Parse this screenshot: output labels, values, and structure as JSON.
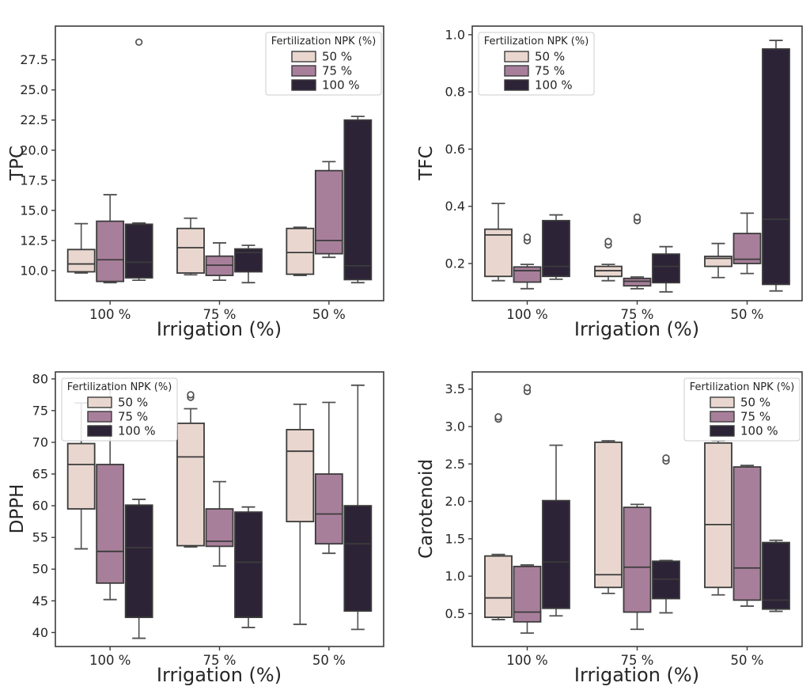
{
  "colors": {
    "box_edge": "#3b3b3b",
    "whisker": "#505050",
    "spine": "#3c3c3c",
    "text": "#262626",
    "legend_border": "#cccccc",
    "fert_50": "#e9d7cf",
    "fert_75": "#a87f9b",
    "fert_100": "#2d2337"
  },
  "chart_data": [
    {
      "type": "box",
      "ylabel": "TPC",
      "xlabel": "Irrigation (%)",
      "categories": [
        "100 %",
        "75 %",
        "50 %"
      ],
      "ylim": [
        7.5,
        30.3
      ],
      "yticks": [
        10.0,
        12.5,
        15.0,
        17.5,
        20.0,
        22.5,
        25.0,
        27.5
      ],
      "ytick_labels": [
        "10.0",
        "12.5",
        "15.0",
        "17.5",
        "20.0",
        "22.5",
        "25.0",
        "27.5"
      ],
      "legend": {
        "title": "Fertilization NPK (%)",
        "position": "top-right"
      },
      "series": [
        {
          "name": "50 %",
          "color": "#e9d7cf",
          "boxes": [
            {
              "whislo": 9.8,
              "q1": 9.9,
              "med": 10.55,
              "q3": 11.75,
              "whishi": 13.9,
              "outliers": []
            },
            {
              "whislo": 9.65,
              "q1": 9.8,
              "med": 11.9,
              "q3": 13.5,
              "whishi": 14.35,
              "outliers": []
            },
            {
              "whislo": 9.6,
              "q1": 9.7,
              "med": 11.5,
              "q3": 13.5,
              "whishi": 13.6,
              "outliers": []
            }
          ]
        },
        {
          "name": "75 %",
          "color": "#a87f9b",
          "boxes": [
            {
              "whislo": 9.0,
              "q1": 9.1,
              "med": 10.9,
              "q3": 14.1,
              "whishi": 16.3,
              "outliers": []
            },
            {
              "whislo": 9.2,
              "q1": 9.6,
              "med": 10.45,
              "q3": 11.2,
              "whishi": 12.3,
              "outliers": []
            },
            {
              "whislo": 11.1,
              "q1": 11.4,
              "med": 12.5,
              "q3": 18.3,
              "whishi": 19.05,
              "outliers": []
            }
          ]
        },
        {
          "name": "100 %",
          "color": "#2d2337",
          "boxes": [
            {
              "whislo": 9.2,
              "q1": 9.4,
              "med": 10.7,
              "q3": 13.85,
              "whishi": 13.95,
              "outliers": [
                28.97
              ]
            },
            {
              "whislo": 9.0,
              "q1": 9.9,
              "med": 11.5,
              "q3": 11.8,
              "whishi": 12.1,
              "outliers": []
            },
            {
              "whislo": 9.0,
              "q1": 9.25,
              "med": 10.4,
              "q3": 22.5,
              "whishi": 22.8,
              "outliers": []
            }
          ]
        }
      ]
    },
    {
      "type": "box",
      "ylabel": "TFC",
      "xlabel": "Irrigation (%)",
      "categories": [
        "100 %",
        "75 %",
        "50 %"
      ],
      "ylim": [
        0.07,
        1.03
      ],
      "yticks": [
        0.2,
        0.4,
        0.6,
        0.8,
        1.0
      ],
      "ytick_labels": [
        "0.2",
        "0.4",
        "0.6",
        "0.8",
        "1.0"
      ],
      "legend": {
        "title": "Fertilization NPK (%)",
        "position": "top-left"
      },
      "series": [
        {
          "name": "50 %",
          "color": "#e9d7cf",
          "boxes": [
            {
              "whislo": 0.14,
              "q1": 0.155,
              "med": 0.3,
              "q3": 0.32,
              "whishi": 0.41,
              "outliers": []
            },
            {
              "whislo": 0.14,
              "q1": 0.155,
              "med": 0.175,
              "q3": 0.19,
              "whishi": 0.197,
              "outliers": [
                0.265,
                0.277
              ]
            },
            {
              "whislo": 0.151,
              "q1": 0.19,
              "med": 0.218,
              "q3": 0.225,
              "whishi": 0.27,
              "outliers": []
            }
          ]
        },
        {
          "name": "75 %",
          "color": "#a87f9b",
          "boxes": [
            {
              "whislo": 0.112,
              "q1": 0.135,
              "med": 0.175,
              "q3": 0.188,
              "whishi": 0.197,
              "outliers": [
                0.28,
                0.292
              ]
            },
            {
              "whislo": 0.112,
              "q1": 0.122,
              "med": 0.138,
              "q3": 0.148,
              "whishi": 0.153,
              "outliers": [
                0.35,
                0.362
              ]
            },
            {
              "whislo": 0.165,
              "q1": 0.2,
              "med": 0.215,
              "q3": 0.305,
              "whishi": 0.376,
              "outliers": []
            }
          ]
        },
        {
          "name": "100 %",
          "color": "#2d2337",
          "boxes": [
            {
              "whislo": 0.145,
              "q1": 0.155,
              "med": 0.19,
              "q3": 0.35,
              "whishi": 0.37,
              "outliers": []
            },
            {
              "whislo": 0.101,
              "q1": 0.133,
              "med": 0.19,
              "q3": 0.233,
              "whishi": 0.259,
              "outliers": []
            },
            {
              "whislo": 0.104,
              "q1": 0.127,
              "med": 0.355,
              "q3": 0.95,
              "whishi": 0.98,
              "outliers": []
            }
          ]
        }
      ]
    },
    {
      "type": "box",
      "ylabel": "DPPH",
      "xlabel": "Irrigation (%)",
      "categories": [
        "100 %",
        "75 %",
        "50 %"
      ],
      "ylim": [
        37.8,
        81.1
      ],
      "yticks": [
        40,
        45,
        50,
        55,
        60,
        65,
        70,
        75,
        80
      ],
      "ytick_labels": [
        "40",
        "45",
        "50",
        "55",
        "60",
        "65",
        "70",
        "75",
        "80"
      ],
      "legend": {
        "title": "Fertilization NPK (%)",
        "position": "top-left"
      },
      "series": [
        {
          "name": "50 %",
          "color": "#e9d7cf",
          "boxes": [
            {
              "whislo": 53.2,
              "q1": 59.5,
              "med": 66.5,
              "q3": 69.8,
              "whishi": 76.2,
              "outliers": []
            },
            {
              "whislo": 53.5,
              "q1": 53.7,
              "med": 67.7,
              "q3": 73.0,
              "whishi": 75.3,
              "outliers": [
                77.1,
                77.5
              ]
            },
            {
              "whislo": 41.3,
              "q1": 57.5,
              "med": 68.6,
              "q3": 72.0,
              "whishi": 76.0,
              "outliers": []
            }
          ]
        },
        {
          "name": "75 %",
          "color": "#a87f9b",
          "boxes": [
            {
              "whislo": 45.2,
              "q1": 47.8,
              "med": 52.8,
              "q3": 66.5,
              "whishi": 79.2,
              "outliers": []
            },
            {
              "whislo": 50.5,
              "q1": 53.6,
              "med": 54.4,
              "q3": 59.5,
              "whishi": 63.8,
              "outliers": []
            },
            {
              "whislo": 52.5,
              "q1": 54.0,
              "med": 58.7,
              "q3": 65.0,
              "whishi": 76.3,
              "outliers": []
            }
          ]
        },
        {
          "name": "100 %",
          "color": "#2d2337",
          "boxes": [
            {
              "whislo": 39.1,
              "q1": 42.4,
              "med": 53.4,
              "q3": 60.1,
              "whishi": 61.0,
              "outliers": []
            },
            {
              "whislo": 40.8,
              "q1": 42.4,
              "med": 51.1,
              "q3": 59.0,
              "whishi": 59.8,
              "outliers": []
            },
            {
              "whislo": 40.5,
              "q1": 43.4,
              "med": 54.0,
              "q3": 60.0,
              "whishi": 79.0,
              "outliers": []
            }
          ]
        }
      ]
    },
    {
      "type": "box",
      "ylabel": "Carotenoid",
      "xlabel": "Irrigation (%)",
      "categories": [
        "100 %",
        "75 %",
        "50 %"
      ],
      "ylim": [
        0.06,
        3.73
      ],
      "yticks": [
        0.5,
        1.0,
        1.5,
        2.0,
        2.5,
        3.0,
        3.5
      ],
      "ytick_labels": [
        "0.5",
        "1.0",
        "1.5",
        "2.0",
        "2.5",
        "3.0",
        "3.5"
      ],
      "legend": {
        "title": "Fertilization NPK (%)",
        "position": "top-right"
      },
      "series": [
        {
          "name": "50 %",
          "color": "#e9d7cf",
          "boxes": [
            {
              "whislo": 0.42,
              "q1": 0.45,
              "med": 0.71,
              "q3": 1.27,
              "whishi": 1.29,
              "outliers": [
                3.1,
                3.13
              ]
            },
            {
              "whislo": 0.77,
              "q1": 0.85,
              "med": 1.02,
              "q3": 2.79,
              "whishi": 2.81,
              "outliers": []
            },
            {
              "whislo": 0.75,
              "q1": 0.85,
              "med": 1.69,
              "q3": 2.78,
              "whishi": 2.81,
              "outliers": []
            }
          ]
        },
        {
          "name": "75 %",
          "color": "#a87f9b",
          "boxes": [
            {
              "whislo": 0.24,
              "q1": 0.39,
              "med": 0.52,
              "q3": 1.13,
              "whishi": 1.15,
              "outliers": [
                3.47,
                3.52
              ]
            },
            {
              "whislo": 0.29,
              "q1": 0.52,
              "med": 1.12,
              "q3": 1.92,
              "whishi": 1.96,
              "outliers": []
            },
            {
              "whislo": 0.6,
              "q1": 0.68,
              "med": 1.11,
              "q3": 2.46,
              "whishi": 2.48,
              "outliers": []
            }
          ]
        },
        {
          "name": "100 %",
          "color": "#2d2337",
          "boxes": [
            {
              "whislo": 0.47,
              "q1": 0.57,
              "med": 1.19,
              "q3": 2.01,
              "whishi": 2.75,
              "outliers": []
            },
            {
              "whislo": 0.51,
              "q1": 0.7,
              "med": 0.96,
              "q3": 1.2,
              "whishi": 1.21,
              "outliers": [
                2.54,
                2.58
              ]
            },
            {
              "whislo": 0.53,
              "q1": 0.56,
              "med": 0.68,
              "q3": 1.45,
              "whishi": 1.48,
              "outliers": []
            }
          ]
        }
      ]
    }
  ]
}
